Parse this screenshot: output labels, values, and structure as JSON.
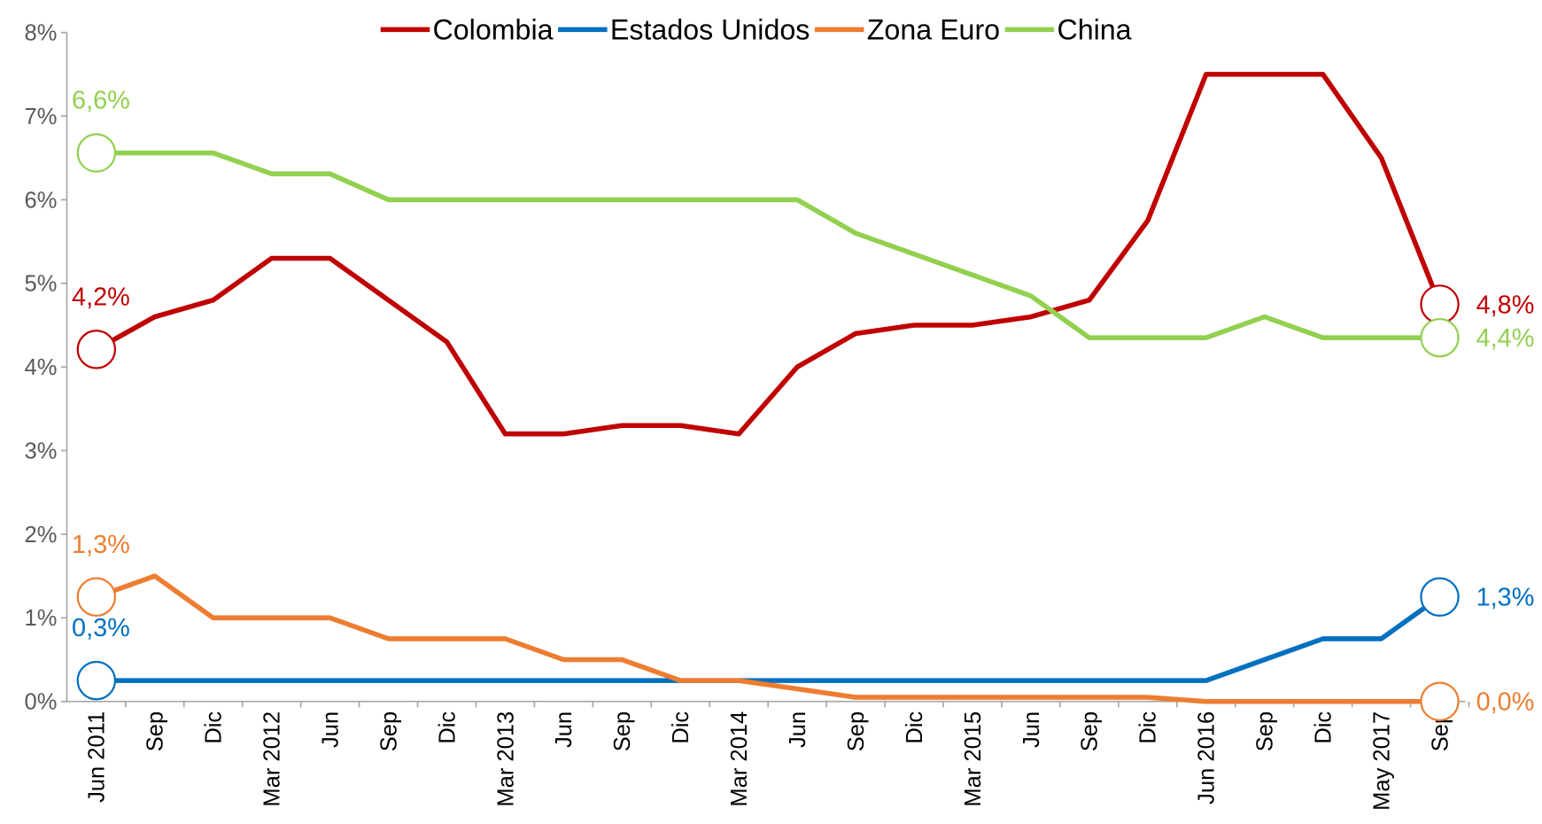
{
  "chart_data": {
    "type": "line",
    "categories": [
      "Jun 2011",
      "Sep",
      "Dic",
      "Mar 2012",
      "Jun",
      "Sep",
      "Dic",
      "Mar 2013",
      "Jun",
      "Sep",
      "Dic",
      "Mar 2014",
      "Jun",
      "Sep",
      "Dic",
      "Mar 2015",
      "Jun",
      "Sep",
      "Dic",
      "Jun 2016",
      "Sep",
      "Dic",
      "May 2017",
      "Sep"
    ],
    "ylim": [
      0,
      8
    ],
    "yticks": [
      {
        "value": 0,
        "label": "0%"
      },
      {
        "value": 1,
        "label": "1%"
      },
      {
        "value": 2,
        "label": "2%"
      },
      {
        "value": 3,
        "label": "3%"
      },
      {
        "value": 4,
        "label": "4%"
      },
      {
        "value": 5,
        "label": "5%"
      },
      {
        "value": 6,
        "label": "6%"
      },
      {
        "value": 7,
        "label": "7%"
      },
      {
        "value": 8,
        "label": "8%"
      }
    ],
    "legend": "top",
    "series": [
      {
        "name": "Colombia",
        "color": "#c00000",
        "values": [
          4.21,
          4.6,
          4.8,
          5.3,
          5.3,
          4.8,
          4.3,
          3.2,
          3.2,
          3.3,
          3.3,
          3.2,
          4.0,
          4.4,
          4.5,
          4.5,
          4.6,
          4.8,
          5.75,
          7.5,
          7.5,
          7.5,
          6.5,
          4.75
        ],
        "value_labels": [
          "4,2%",
          null,
          null,
          null,
          null,
          null,
          null,
          null,
          null,
          null,
          null,
          null,
          null,
          null,
          null,
          null,
          null,
          null,
          null,
          null,
          null,
          null,
          null,
          "4,8%"
        ]
      },
      {
        "name": "Estados Unidos",
        "color": "#0070c0",
        "values": [
          0.25,
          0.25,
          0.25,
          0.25,
          0.25,
          0.25,
          0.25,
          0.25,
          0.25,
          0.25,
          0.25,
          0.25,
          0.25,
          0.25,
          0.25,
          0.25,
          0.25,
          0.25,
          0.25,
          0.25,
          0.5,
          0.75,
          0.75,
          1.25
        ],
        "value_labels": [
          "0,3%",
          null,
          null,
          null,
          null,
          null,
          null,
          null,
          null,
          null,
          null,
          null,
          null,
          null,
          null,
          null,
          null,
          null,
          null,
          null,
          null,
          null,
          null,
          "1,3%"
        ]
      },
      {
        "name": "Zona Euro",
        "color": "#ed7d31",
        "values": [
          1.25,
          1.5,
          1.0,
          1.0,
          1.0,
          0.75,
          0.75,
          0.75,
          0.5,
          0.5,
          0.25,
          0.25,
          0.15,
          0.05,
          0.05,
          0.05,
          0.05,
          0.05,
          0.05,
          0.0,
          0.0,
          0.0,
          0.0,
          0.0
        ],
        "value_labels": [
          "1,3%",
          null,
          null,
          null,
          null,
          null,
          null,
          null,
          null,
          null,
          null,
          null,
          null,
          null,
          null,
          null,
          null,
          null,
          null,
          null,
          null,
          null,
          null,
          "0,0%"
        ]
      },
      {
        "name": "China",
        "color": "#92d050",
        "values": [
          6.56,
          6.56,
          6.56,
          6.31,
          6.31,
          6.0,
          6.0,
          6.0,
          6.0,
          6.0,
          6.0,
          6.0,
          6.0,
          5.6,
          5.35,
          5.1,
          4.85,
          4.35,
          4.35,
          4.35,
          4.6,
          4.35,
          4.35,
          4.35
        ],
        "value_labels": [
          "6,6%",
          null,
          null,
          null,
          null,
          null,
          null,
          null,
          null,
          null,
          null,
          null,
          null,
          null,
          null,
          null,
          null,
          null,
          null,
          null,
          null,
          null,
          null,
          "4,4%"
        ]
      }
    ]
  }
}
